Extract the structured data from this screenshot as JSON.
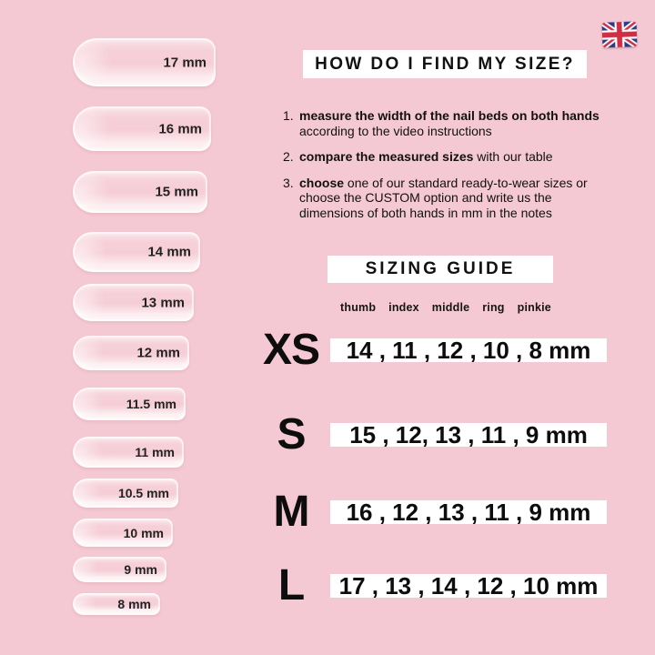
{
  "header": {
    "title": "HOW DO I FIND MY SIZE?"
  },
  "flag": {
    "country": "United Kingdom"
  },
  "instructions": {
    "items": [
      {
        "number": "1.",
        "bold": "measure the width of the nail beds on both hands",
        "rest": " according to the video instructions"
      },
      {
        "number": "2.",
        "bold": "compare the measured sizes",
        "rest": " with our table"
      },
      {
        "number": "3.",
        "bold": "choose",
        "rest": " one of our standard ready-to-wear sizes or choose the CUSTOM option and write us the dimensions of both hands in mm in the notes"
      }
    ]
  },
  "sizing_guide": {
    "title": "SIZING GUIDE",
    "finger_labels": [
      "thumb",
      "index",
      "middle",
      "ring",
      "pinkie"
    ],
    "rows": [
      {
        "size": "XS",
        "measurements": "14 , 11 , 12 , 10 , 8 mm"
      },
      {
        "size": "S",
        "measurements": "15 , 12, 13 , 11 , 9 mm"
      },
      {
        "size": "M",
        "measurements": "16 , 12 , 13 , 11 , 9 mm"
      },
      {
        "size": "L",
        "measurements": "17 , 13 , 14 , 12 , 10 mm"
      }
    ]
  },
  "nail_sizes": {
    "labels": [
      "17 mm",
      "16 mm",
      "15 mm",
      "14 mm",
      "13 mm",
      "12 mm",
      "11.5 mm",
      "11 mm",
      "10.5 mm",
      "10 mm",
      "9 mm",
      "8 mm"
    ]
  },
  "colors": {
    "background": "#f5c9d3",
    "panel": "#ffffff",
    "text": "#111111",
    "flag_navy": "#2b3a86",
    "flag_red": "#cf2e44"
  }
}
